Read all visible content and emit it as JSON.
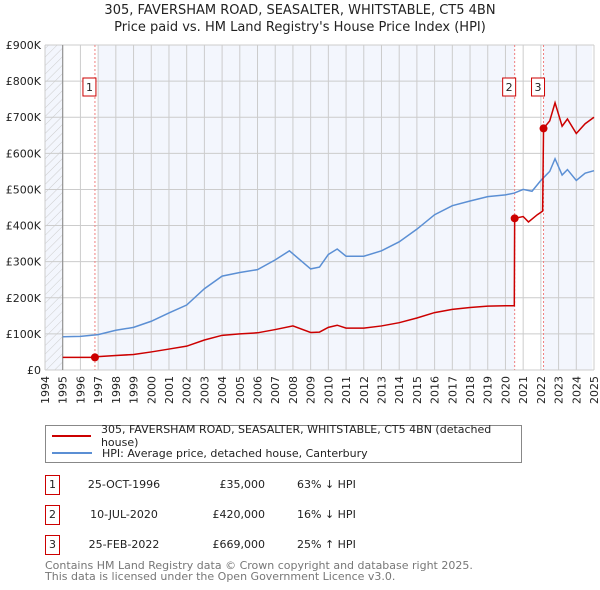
{
  "chart_data": {
    "type": "line",
    "title": "305, FAVERSHAM ROAD, SEASALTER, WHITSTABLE, CT5 4BN",
    "subtitle": "Price paid vs. HM Land Registry's House Price Index (HPI)",
    "xlim": [
      1994,
      2025
    ],
    "ylim": [
      0,
      900000
    ],
    "x_ticks": [
      "1994",
      "1995",
      "1996",
      "1997",
      "1998",
      "1999",
      "2000",
      "2001",
      "2002",
      "2003",
      "2004",
      "2005",
      "2006",
      "2007",
      "2008",
      "2009",
      "2010",
      "2011",
      "2012",
      "2013",
      "2014",
      "2015",
      "2016",
      "2017",
      "2018",
      "2019",
      "2020",
      "2021",
      "2022",
      "2023",
      "2024",
      "2025"
    ],
    "y_ticks": [
      {
        "v": 0,
        "label": "£0"
      },
      {
        "v": 100000,
        "label": "£100K"
      },
      {
        "v": 200000,
        "label": "£200K"
      },
      {
        "v": 300000,
        "label": "£300K"
      },
      {
        "v": 400000,
        "label": "£400K"
      },
      {
        "v": 500000,
        "label": "£500K"
      },
      {
        "v": 600000,
        "label": "£600K"
      },
      {
        "v": 700000,
        "label": "£700K"
      },
      {
        "v": 800000,
        "label": "£800K"
      },
      {
        "v": 900000,
        "label": "£900K"
      }
    ],
    "grid": true,
    "series": [
      {
        "name": "305, FAVERSHAM ROAD, SEASALTER, WHITSTABLE, CT5 4BN (detached house)",
        "color": "#cc0000",
        "points": [
          [
            1995,
            35
          ],
          [
            1996.8,
            35
          ],
          [
            1997,
            37
          ],
          [
            1998,
            40
          ],
          [
            1999,
            43
          ],
          [
            2000,
            50
          ],
          [
            2001,
            58
          ],
          [
            2002,
            66
          ],
          [
            2003,
            83
          ],
          [
            2004,
            96
          ],
          [
            2005,
            100
          ],
          [
            2006,
            103
          ],
          [
            2007,
            112
          ],
          [
            2008,
            122
          ],
          [
            2009,
            104
          ],
          [
            2009.5,
            105
          ],
          [
            2010,
            118
          ],
          [
            2010.5,
            124
          ],
          [
            2011,
            116
          ],
          [
            2012,
            116
          ],
          [
            2013,
            122
          ],
          [
            2014,
            131
          ],
          [
            2015,
            144
          ],
          [
            2016,
            159
          ],
          [
            2017,
            168
          ],
          [
            2018,
            173
          ],
          [
            2019,
            177
          ],
          [
            2020,
            178
          ],
          [
            2020.5,
            178
          ],
          [
            2020.52,
            420
          ],
          [
            2021,
            425
          ],
          [
            2021.3,
            410
          ],
          [
            2021.8,
            430
          ],
          [
            2022.1,
            440
          ],
          [
            2022.15,
            669
          ],
          [
            2022.5,
            690
          ],
          [
            2022.8,
            740
          ],
          [
            2023.2,
            675
          ],
          [
            2023.5,
            695
          ],
          [
            2024,
            655
          ],
          [
            2024.5,
            682
          ],
          [
            2025,
            700
          ]
        ]
      },
      {
        "name": "HPI: Average price, detached house, Canterbury",
        "color": "#5b8fd4",
        "points": [
          [
            1995,
            92
          ],
          [
            1996,
            93
          ],
          [
            1997,
            98
          ],
          [
            1998,
            110
          ],
          [
            1999,
            118
          ],
          [
            2000,
            135
          ],
          [
            2001,
            158
          ],
          [
            2002,
            180
          ],
          [
            2003,
            225
          ],
          [
            2004,
            260
          ],
          [
            2005,
            270
          ],
          [
            2006,
            278
          ],
          [
            2007,
            305
          ],
          [
            2007.8,
            330
          ],
          [
            2009,
            280
          ],
          [
            2009.5,
            285
          ],
          [
            2010,
            320
          ],
          [
            2010.5,
            335
          ],
          [
            2011,
            315
          ],
          [
            2012,
            315
          ],
          [
            2013,
            330
          ],
          [
            2014,
            355
          ],
          [
            2015,
            390
          ],
          [
            2016,
            430
          ],
          [
            2017,
            455
          ],
          [
            2018,
            468
          ],
          [
            2019,
            480
          ],
          [
            2020,
            485
          ],
          [
            2020.5,
            490
          ],
          [
            2021,
            500
          ],
          [
            2021.5,
            495
          ],
          [
            2022,
            525
          ],
          [
            2022.5,
            550
          ],
          [
            2022.8,
            585
          ],
          [
            2023.2,
            540
          ],
          [
            2023.5,
            555
          ],
          [
            2024,
            525
          ],
          [
            2024.5,
            545
          ],
          [
            2025,
            552
          ]
        ]
      }
    ],
    "sales": [
      {
        "id": "1",
        "x": 1996.82,
        "value": 35
      },
      {
        "id": "2",
        "x": 2020.52,
        "value": 420
      },
      {
        "id": "3",
        "x": 2022.15,
        "value": 669
      }
    ],
    "legend_position": "below"
  },
  "legend": {
    "property": "305, FAVERSHAM ROAD, SEASALTER, WHITSTABLE, CT5 4BN (detached house)",
    "hpi": "HPI: Average price, detached house, Canterbury"
  },
  "transactions": [
    {
      "id": "1",
      "date": "25-OCT-1996",
      "price": "£35,000",
      "hpi": "63% ↓ HPI"
    },
    {
      "id": "2",
      "date": "10-JUL-2020",
      "price": "£420,000",
      "hpi": "16% ↓ HPI"
    },
    {
      "id": "3",
      "date": "25-FEB-2022",
      "price": "£669,000",
      "hpi": "25% ↑ HPI"
    }
  ],
  "footer": {
    "line1": "Contains HM Land Registry data © Crown copyright and database right 2025.",
    "line2": "This data is licensed under the Open Government Licence v3.0."
  }
}
